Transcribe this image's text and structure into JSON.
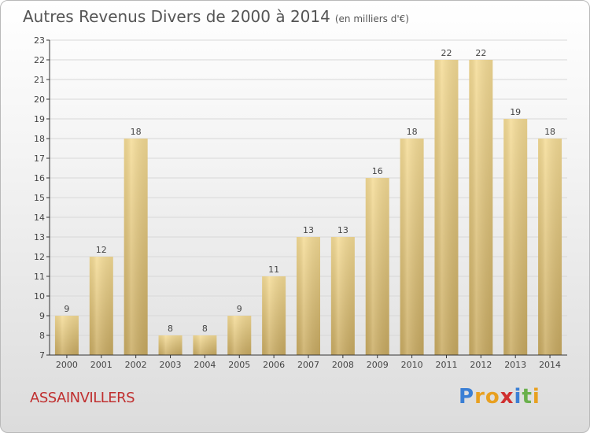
{
  "header": {
    "title": "Autres Revenus Divers de 2000 à 2014",
    "unit": "(en milliers d'€)"
  },
  "location": "ASSAINVILLERS",
  "logo": {
    "letters": [
      "P",
      "r",
      "o",
      "x",
      "i",
      "t",
      "i"
    ],
    "colors": [
      "#3a7fd5",
      "#e8a020",
      "#e8a020",
      "#d03030",
      "#3a7fd5",
      "#6ab04c",
      "#e8a020"
    ]
  },
  "colors": {
    "bar_top": "#f5dc96",
    "bar_bottom": "#c9ab62",
    "axis": "#333333",
    "grid": "#d8d8d8"
  },
  "chart_data": {
    "type": "bar",
    "title": "Autres Revenus Divers de 2000 à 2014",
    "categories": [
      "2000",
      "2001",
      "2002",
      "2003",
      "2004",
      "2005",
      "2006",
      "2007",
      "2008",
      "2009",
      "2010",
      "2011",
      "2012",
      "2013",
      "2014"
    ],
    "values": [
      9,
      12,
      18,
      8,
      8,
      9,
      11,
      13,
      13,
      16,
      18,
      22,
      22,
      19,
      18
    ],
    "value_labels": [
      "9",
      "12",
      "18",
      "8",
      "8",
      "9",
      "11",
      "13",
      "13",
      "16",
      "18",
      "22",
      "22",
      "19",
      "18"
    ],
    "ylim": [
      7,
      23
    ],
    "yticks": [
      7,
      8,
      9,
      10,
      11,
      12,
      13,
      14,
      15,
      16,
      17,
      18,
      19,
      20,
      21,
      22,
      23
    ],
    "grid": true
  }
}
